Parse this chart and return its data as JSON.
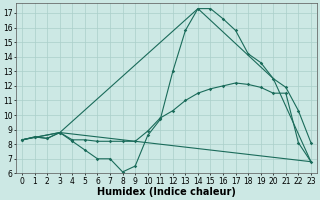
{
  "xlabel": "Humidex (Indice chaleur)",
  "bg_color": "#cce8e4",
  "grid_color": "#aacfca",
  "line_color": "#1a6b5a",
  "xlim": [
    -0.5,
    23.5
  ],
  "ylim": [
    6,
    17.7
  ],
  "xticks": [
    0,
    1,
    2,
    3,
    4,
    5,
    6,
    7,
    8,
    9,
    10,
    11,
    12,
    13,
    14,
    15,
    16,
    17,
    18,
    19,
    20,
    21,
    22,
    23
  ],
  "yticks": [
    6,
    7,
    8,
    9,
    10,
    11,
    12,
    13,
    14,
    15,
    16,
    17
  ],
  "line1_x": [
    0,
    1,
    2,
    3,
    4,
    5,
    6,
    7,
    8,
    9,
    10,
    11,
    12,
    13,
    14,
    15,
    16,
    17,
    18,
    19,
    20,
    21,
    22,
    23
  ],
  "line1_y": [
    8.3,
    8.5,
    8.4,
    8.8,
    8.2,
    7.6,
    7.0,
    7.0,
    6.1,
    6.5,
    8.6,
    9.7,
    13.0,
    15.8,
    17.3,
    17.3,
    16.6,
    15.8,
    14.2,
    13.6,
    12.5,
    11.9,
    10.3,
    8.1
  ],
  "line2_x": [
    0,
    1,
    2,
    3,
    4,
    5,
    6,
    7,
    8,
    9,
    10,
    11,
    12,
    13,
    14,
    15,
    16,
    17,
    18,
    19,
    20,
    21,
    22,
    23
  ],
  "line2_y": [
    8.3,
    8.5,
    8.4,
    8.8,
    8.3,
    8.3,
    8.2,
    8.2,
    8.2,
    8.2,
    8.9,
    9.8,
    10.3,
    11.0,
    11.5,
    11.8,
    12.0,
    12.2,
    12.1,
    11.9,
    11.5,
    11.5,
    8.1,
    6.8
  ],
  "line3_x": [
    0,
    3,
    14,
    20,
    23
  ],
  "line3_y": [
    8.3,
    8.8,
    17.3,
    12.5,
    6.8
  ],
  "line4_x": [
    0,
    3,
    23
  ],
  "line4_y": [
    8.3,
    8.8,
    6.8
  ],
  "font_size_label": 7,
  "font_size_tick": 5.5
}
